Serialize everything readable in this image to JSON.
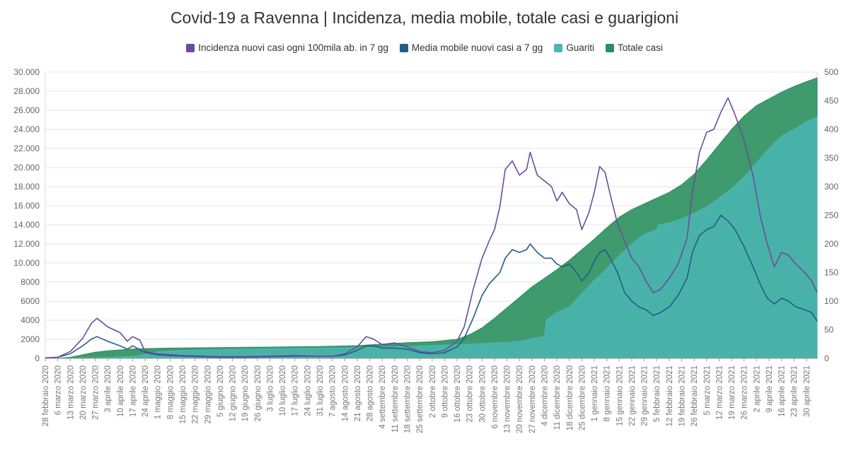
{
  "chart_data": {
    "type": "area",
    "title": "Covid-19 a Ravenna | Incidenza, media mobile, totale casi e guarigioni",
    "legend_position": "top-center",
    "grid": true,
    "colors": {
      "incidenza": "#6a4c9c",
      "media_mobile": "#1f5e88",
      "guariti": "#4bb6b3",
      "totale_casi": "#2a8f5e"
    },
    "y_left": {
      "min": 0,
      "max": 30000,
      "ticks": [
        0,
        2000,
        4000,
        6000,
        8000,
        10000,
        12000,
        14000,
        16000,
        18000,
        20000,
        22000,
        24000,
        26000,
        28000,
        30000
      ],
      "tick_labels": [
        "0",
        "2000",
        "4000",
        "6000",
        "8000",
        "10.000",
        "12.000",
        "14.000",
        "16.000",
        "18.000",
        "20.000",
        "22.000",
        "24.000",
        "26.000",
        "28.000",
        "30.000"
      ]
    },
    "y_right": {
      "min": 0,
      "max": 500,
      "ticks": [
        0,
        50,
        100,
        150,
        200,
        250,
        300,
        350,
        400,
        450,
        500
      ],
      "tick_labels": [
        "0",
        "50",
        "100",
        "150",
        "200",
        "250",
        "300",
        "350",
        "400",
        "450",
        "500"
      ]
    },
    "x_range": [
      "2020-02-28",
      "2021-05-06"
    ],
    "x_tick_dates": [
      "2020-02-28",
      "2020-03-06",
      "2020-03-13",
      "2020-03-20",
      "2020-03-27",
      "2020-04-03",
      "2020-04-10",
      "2020-04-17",
      "2020-04-24",
      "2020-05-01",
      "2020-05-08",
      "2020-05-15",
      "2020-05-22",
      "2020-05-29",
      "2020-06-05",
      "2020-06-12",
      "2020-06-19",
      "2020-06-26",
      "2020-07-03",
      "2020-07-10",
      "2020-07-17",
      "2020-07-24",
      "2020-07-31",
      "2020-08-07",
      "2020-08-14",
      "2020-08-21",
      "2020-08-28",
      "2020-09-04",
      "2020-09-11",
      "2020-09-18",
      "2020-09-25",
      "2020-10-02",
      "2020-10-09",
      "2020-10-16",
      "2020-10-23",
      "2020-10-30",
      "2020-11-06",
      "2020-11-13",
      "2020-11-20",
      "2020-11-27",
      "2020-12-04",
      "2020-12-11",
      "2020-12-18",
      "2020-12-25",
      "2021-01-01",
      "2021-01-08",
      "2021-01-15",
      "2021-01-22",
      "2021-01-29",
      "2021-02-05",
      "2021-02-12",
      "2021-02-19",
      "2021-02-26",
      "2021-03-05",
      "2021-03-12",
      "2021-03-19",
      "2021-03-26",
      "2021-04-02",
      "2021-04-09",
      "2021-04-16",
      "2021-04-23",
      "2021-04-30"
    ],
    "x_tick_labels": [
      "28 febbraio 2020",
      "6 marzo 2020",
      "13 marzo 2020",
      "20 marzo 2020",
      "27 marzo 2020",
      "3 aprile 2020",
      "10 aprile 2020",
      "17 aprile 2020",
      "24 aprile 2020",
      "1 maggio 2020",
      "8 maggio 2020",
      "15 maggio 2020",
      "22 maggio 2020",
      "29 maggio 2020",
      "5 giugno 2020",
      "12 giugno 2020",
      "19 giugno 2020",
      "26 giugno 2020",
      "3 luglio 2020",
      "10 luglio 2020",
      "17 luglio 2020",
      "24 luglio 2020",
      "31 luglio 2020",
      "7 agosto 2020",
      "14 agosto 2020",
      "21 agosto 2020",
      "28 agosto 2020",
      "4 settembre 2020",
      "11 settembre 2020",
      "18 settembre 2020",
      "25 settembre 2020",
      "2 ottobre 2020",
      "9 ottobre 2020",
      "16 ottobre 2020",
      "23 ottobre 2020",
      "30 ottobre 2020",
      "6 novembre 2020",
      "13 novembre 2020",
      "20 novembre 2020",
      "27 novembre 2020",
      "4 dicembre 2020",
      "11 dicembre 2020",
      "18 dicembre 2020",
      "25 dicembre 2020",
      "1 gennaio 2021",
      "8 gennaio 2021",
      "15 gennaio 2021",
      "22 gennaio 2021",
      "29 gennaio 2021",
      "5 febbraio 2021",
      "12 febbraio 2021",
      "19 febbraio 2021",
      "26 febbraio 2021",
      "5 marzo 2021",
      "12 marzo 2021",
      "19 marzo 2021",
      "26 marzo 2021",
      "2 aprile 2021",
      "9 aprile 2021",
      "16 aprile 2021",
      "23 aprile 2021",
      "30 aprile 2021"
    ],
    "series": [
      {
        "name": "Incidenza nuovi casi ogni 100mila ab. in 7 gg",
        "axis": "right",
        "kind": "line",
        "color": "#6a4c9c",
        "x": [
          "2020-02-28",
          "2020-03-06",
          "2020-03-13",
          "2020-03-20",
          "2020-03-25",
          "2020-03-28",
          "2020-04-03",
          "2020-04-10",
          "2020-04-14",
          "2020-04-17",
          "2020-04-21",
          "2020-04-24",
          "2020-05-01",
          "2020-05-15",
          "2020-06-05",
          "2020-06-19",
          "2020-07-03",
          "2020-07-17",
          "2020-07-31",
          "2020-08-07",
          "2020-08-14",
          "2020-08-21",
          "2020-08-26",
          "2020-08-30",
          "2020-09-04",
          "2020-09-11",
          "2020-09-18",
          "2020-09-25",
          "2020-10-02",
          "2020-10-09",
          "2020-10-16",
          "2020-10-20",
          "2020-10-25",
          "2020-10-30",
          "2020-11-03",
          "2020-11-06",
          "2020-11-09",
          "2020-11-12",
          "2020-11-16",
          "2020-11-20",
          "2020-11-24",
          "2020-11-26",
          "2020-11-30",
          "2020-12-04",
          "2020-12-08",
          "2020-12-11",
          "2020-12-14",
          "2020-12-18",
          "2020-12-22",
          "2020-12-25",
          "2020-12-29",
          "2021-01-01",
          "2021-01-04",
          "2021-01-07",
          "2021-01-10",
          "2021-01-14",
          "2021-01-18",
          "2021-01-22",
          "2021-01-26",
          "2021-01-30",
          "2021-02-03",
          "2021-02-07",
          "2021-02-12",
          "2021-02-17",
          "2021-02-22",
          "2021-02-25",
          "2021-03-01",
          "2021-03-05",
          "2021-03-09",
          "2021-03-13",
          "2021-03-17",
          "2021-03-21",
          "2021-03-26",
          "2021-03-31",
          "2021-04-04",
          "2021-04-08",
          "2021-04-12",
          "2021-04-16",
          "2021-04-20",
          "2021-04-24",
          "2021-04-29",
          "2021-05-03",
          "2021-05-06"
        ],
        "values": [
          1,
          2,
          12,
          35,
          62,
          70,
          55,
          45,
          30,
          38,
          32,
          12,
          8,
          5,
          3,
          3,
          4,
          5,
          4,
          4,
          8,
          20,
          38,
          34,
          24,
          27,
          20,
          12,
          10,
          14,
          30,
          55,
          120,
          175,
          205,
          225,
          265,
          330,
          345,
          320,
          330,
          360,
          320,
          310,
          300,
          275,
          290,
          270,
          260,
          225,
          255,
          290,
          335,
          325,
          285,
          235,
          205,
          175,
          160,
          135,
          115,
          120,
          140,
          165,
          210,
          290,
          360,
          395,
          400,
          430,
          455,
          425,
          380,
          320,
          250,
          200,
          160,
          185,
          180,
          165,
          150,
          135,
          115
        ]
      },
      {
        "name": "Media mobile nuovi casi a 7 gg",
        "axis": "right",
        "kind": "line",
        "color": "#1f5e88",
        "x": [
          "2020-02-28",
          "2020-03-06",
          "2020-03-13",
          "2020-03-20",
          "2020-03-25",
          "2020-03-28",
          "2020-04-03",
          "2020-04-10",
          "2020-04-14",
          "2020-04-17",
          "2020-04-24",
          "2020-05-01",
          "2020-05-15",
          "2020-06-05",
          "2020-06-19",
          "2020-07-03",
          "2020-07-17",
          "2020-07-31",
          "2020-08-07",
          "2020-08-14",
          "2020-08-21",
          "2020-08-26",
          "2020-08-30",
          "2020-09-04",
          "2020-09-11",
          "2020-09-18",
          "2020-09-25",
          "2020-10-02",
          "2020-10-09",
          "2020-10-16",
          "2020-10-20",
          "2020-10-25",
          "2020-10-30",
          "2020-11-03",
          "2020-11-06",
          "2020-11-09",
          "2020-11-12",
          "2020-11-16",
          "2020-11-20",
          "2020-11-24",
          "2020-11-26",
          "2020-11-30",
          "2020-12-04",
          "2020-12-08",
          "2020-12-11",
          "2020-12-14",
          "2020-12-18",
          "2020-12-22",
          "2020-12-25",
          "2020-12-29",
          "2021-01-01",
          "2021-01-04",
          "2021-01-07",
          "2021-01-10",
          "2021-01-14",
          "2021-01-18",
          "2021-01-22",
          "2021-01-26",
          "2021-01-30",
          "2021-02-03",
          "2021-02-07",
          "2021-02-12",
          "2021-02-17",
          "2021-02-22",
          "2021-02-25",
          "2021-03-01",
          "2021-03-05",
          "2021-03-09",
          "2021-03-13",
          "2021-03-17",
          "2021-03-21",
          "2021-03-26",
          "2021-03-31",
          "2021-04-04",
          "2021-04-08",
          "2021-04-12",
          "2021-04-16",
          "2021-04-20",
          "2021-04-24",
          "2021-04-29",
          "2021-05-03",
          "2021-05-06"
        ],
        "values": [
          1,
          2,
          8,
          22,
          34,
          38,
          30,
          22,
          16,
          22,
          10,
          6,
          4,
          2,
          2,
          3,
          4,
          4,
          4,
          6,
          14,
          22,
          22,
          18,
          18,
          16,
          10,
          8,
          10,
          20,
          35,
          70,
          110,
          130,
          140,
          150,
          175,
          190,
          185,
          190,
          200,
          185,
          175,
          175,
          165,
          160,
          165,
          150,
          135,
          150,
          170,
          185,
          190,
          175,
          150,
          115,
          100,
          90,
          85,
          75,
          80,
          90,
          110,
          140,
          185,
          215,
          225,
          230,
          250,
          240,
          225,
          195,
          160,
          130,
          105,
          95,
          105,
          100,
          90,
          85,
          80,
          65
        ]
      },
      {
        "name": "Guariti",
        "axis": "left",
        "kind": "area",
        "color": "#4bb6b3",
        "x": [
          "2020-02-28",
          "2020-03-13",
          "2020-03-27",
          "2020-04-10",
          "2020-04-20",
          "2020-04-24",
          "2020-05-01",
          "2020-05-15",
          "2020-06-05",
          "2020-06-26",
          "2020-07-17",
          "2020-08-07",
          "2020-08-28",
          "2020-09-18",
          "2020-10-02",
          "2020-10-16",
          "2020-10-30",
          "2020-11-13",
          "2020-11-20",
          "2020-11-25",
          "2020-11-27",
          "2020-12-01",
          "2020-12-04",
          "2020-12-05",
          "2020-12-11",
          "2020-12-18",
          "2020-12-25",
          "2021-01-01",
          "2021-01-08",
          "2021-01-15",
          "2021-01-22",
          "2021-01-29",
          "2021-02-05",
          "2021-02-06",
          "2021-02-12",
          "2021-02-19",
          "2021-02-26",
          "2021-03-05",
          "2021-03-12",
          "2021-03-19",
          "2021-03-26",
          "2021-04-02",
          "2021-04-09",
          "2021-04-16",
          "2021-04-23",
          "2021-04-30",
          "2021-05-06"
        ],
        "values": [
          0,
          10,
          50,
          150,
          250,
          500,
          700,
          850,
          950,
          1000,
          1050,
          1100,
          1150,
          1250,
          1350,
          1450,
          1550,
          1700,
          1800,
          2000,
          2100,
          2200,
          2300,
          4000,
          4800,
          5400,
          6800,
          8200,
          9400,
          10800,
          12000,
          13000,
          13500,
          14000,
          14200,
          14600,
          15200,
          15900,
          16800,
          17800,
          19000,
          20500,
          22000,
          23300,
          24000,
          24800,
          25300
        ]
      },
      {
        "name": "Totale casi",
        "axis": "left",
        "kind": "area",
        "color": "#2a8f5e",
        "x": [
          "2020-02-28",
          "2020-03-06",
          "2020-03-13",
          "2020-03-20",
          "2020-03-27",
          "2020-04-03",
          "2020-04-10",
          "2020-04-17",
          "2020-04-24",
          "2020-05-08",
          "2020-05-29",
          "2020-06-19",
          "2020-07-10",
          "2020-07-31",
          "2020-08-21",
          "2020-09-04",
          "2020-09-18",
          "2020-10-02",
          "2020-10-16",
          "2020-10-23",
          "2020-10-30",
          "2020-11-06",
          "2020-11-13",
          "2020-11-20",
          "2020-11-27",
          "2020-12-04",
          "2020-12-11",
          "2020-12-18",
          "2020-12-25",
          "2021-01-01",
          "2021-01-08",
          "2021-01-15",
          "2021-01-22",
          "2021-01-29",
          "2021-02-05",
          "2021-02-12",
          "2021-02-19",
          "2021-02-26",
          "2021-03-05",
          "2021-03-12",
          "2021-03-19",
          "2021-03-26",
          "2021-04-02",
          "2021-04-09",
          "2021-04-16",
          "2021-04-23",
          "2021-04-30",
          "2021-05-06"
        ],
        "values": [
          0,
          20,
          120,
          380,
          650,
          800,
          900,
          980,
          1030,
          1080,
          1120,
          1160,
          1200,
          1250,
          1330,
          1500,
          1650,
          1750,
          2000,
          2500,
          3200,
          4200,
          5300,
          6400,
          7500,
          8400,
          9300,
          10300,
          11400,
          12500,
          13700,
          14800,
          15600,
          16200,
          16800,
          17400,
          18200,
          19300,
          20800,
          22400,
          24000,
          25400,
          26500,
          27200,
          27900,
          28500,
          29000,
          29400
        ]
      }
    ]
  }
}
